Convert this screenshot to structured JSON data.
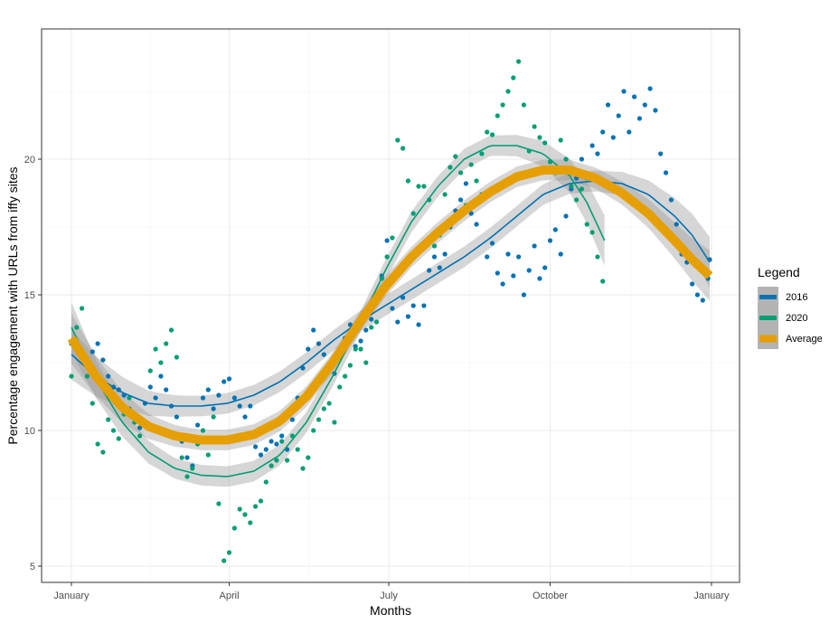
{
  "chart_data": {
    "type": "scatter",
    "title": "",
    "xlabel": "Months",
    "ylabel": "Percentage engagement with URLs from iffy sites",
    "x_ticks": [
      {
        "label": "January",
        "day": 1
      },
      {
        "label": "April",
        "day": 91
      },
      {
        "label": "July",
        "day": 182
      },
      {
        "label": "October",
        "day": 274
      },
      {
        "label": "January",
        "day": 366
      }
    ],
    "y_ticks": [
      5,
      10,
      15,
      20
    ],
    "xlim": [
      -16,
      382
    ],
    "ylim": [
      4.4,
      24.8
    ],
    "grid": true,
    "legend": {
      "title": "Legend",
      "position": "right",
      "entries": [
        {
          "label": "2016",
          "color": "#0072B2"
        },
        {
          "label": "2020",
          "color": "#009E73"
        },
        {
          "label": "Average",
          "color": "#E69F00"
        }
      ]
    },
    "series": [
      {
        "name": "2016",
        "color": "#0072B2",
        "smooth_start_day": 1,
        "smooth_end_day": 365,
        "smooth_line": [
          [
            1,
            12.8
          ],
          [
            15,
            12.0
          ],
          [
            30,
            11.4
          ],
          [
            45,
            11.0
          ],
          [
            60,
            10.9
          ],
          [
            75,
            10.9
          ],
          [
            90,
            11.0
          ],
          [
            105,
            11.3
          ],
          [
            120,
            11.8
          ],
          [
            135,
            12.5
          ],
          [
            150,
            13.3
          ],
          [
            165,
            14.0
          ],
          [
            180,
            14.6
          ],
          [
            195,
            15.2
          ],
          [
            210,
            15.8
          ],
          [
            225,
            16.4
          ],
          [
            240,
            17.1
          ],
          [
            255,
            17.9
          ],
          [
            270,
            18.7
          ],
          [
            285,
            19.1
          ],
          [
            300,
            19.2
          ],
          [
            315,
            19.1
          ],
          [
            330,
            18.7
          ],
          [
            345,
            17.9
          ],
          [
            355,
            17.2
          ],
          [
            365,
            16.2
          ]
        ],
        "points": [
          [
            1,
            13.2
          ],
          [
            4,
            13.0
          ],
          [
            7,
            12.7
          ],
          [
            10,
            12.4
          ],
          [
            13,
            12.9
          ],
          [
            16,
            13.2
          ],
          [
            19,
            12.6
          ],
          [
            22,
            12.0
          ],
          [
            25,
            11.6
          ],
          [
            28,
            11.5
          ],
          [
            31,
            11.3
          ],
          [
            34,
            10.8
          ],
          [
            37,
            10.5
          ],
          [
            40,
            10.1
          ],
          [
            43,
            11.0
          ],
          [
            46,
            11.6
          ],
          [
            49,
            11.2
          ],
          [
            52,
            12.0
          ],
          [
            55,
            11.5
          ],
          [
            58,
            10.9
          ],
          [
            61,
            10.5
          ],
          [
            64,
            9.6
          ],
          [
            67,
            9.0
          ],
          [
            70,
            8.7
          ],
          [
            73,
            10.2
          ],
          [
            76,
            11.2
          ],
          [
            79,
            11.5
          ],
          [
            82,
            10.8
          ],
          [
            85,
            11.3
          ],
          [
            88,
            11.8
          ],
          [
            91,
            11.9
          ],
          [
            94,
            11.2
          ],
          [
            97,
            10.9
          ],
          [
            100,
            10.5
          ],
          [
            103,
            10.9
          ],
          [
            106,
            9.4
          ],
          [
            109,
            9.1
          ],
          [
            112,
            9.3
          ],
          [
            115,
            9.6
          ],
          [
            118,
            9.5
          ],
          [
            121,
            9.8
          ],
          [
            124,
            9.3
          ],
          [
            127,
            10.4
          ],
          [
            130,
            11.2
          ],
          [
            133,
            12.3
          ],
          [
            136,
            13.0
          ],
          [
            139,
            13.7
          ],
          [
            142,
            13.2
          ],
          [
            145,
            12.8
          ],
          [
            148,
            12.4
          ],
          [
            151,
            12.1
          ],
          [
            154,
            12.7
          ],
          [
            157,
            13.4
          ],
          [
            160,
            13.9
          ],
          [
            163,
            13.1
          ],
          [
            166,
            13.3
          ],
          [
            169,
            13.7
          ],
          [
            172,
            14.1
          ],
          [
            175,
            14.8
          ],
          [
            178,
            15.7
          ],
          [
            181,
            17.0
          ],
          [
            184,
            14.5
          ],
          [
            187,
            14.0
          ],
          [
            190,
            14.9
          ],
          [
            193,
            14.2
          ],
          [
            196,
            14.6
          ],
          [
            199,
            13.9
          ],
          [
            202,
            14.6
          ],
          [
            205,
            15.9
          ],
          [
            208,
            16.4
          ],
          [
            211,
            16.0
          ],
          [
            214,
            16.5
          ],
          [
            217,
            17.5
          ],
          [
            220,
            18.1
          ],
          [
            223,
            18.5
          ],
          [
            226,
            19.1
          ],
          [
            229,
            18.0
          ],
          [
            232,
            17.6
          ],
          [
            235,
            18.7
          ],
          [
            238,
            16.4
          ],
          [
            241,
            16.9
          ],
          [
            244,
            15.8
          ],
          [
            247,
            15.4
          ],
          [
            250,
            16.5
          ],
          [
            253,
            15.7
          ],
          [
            256,
            16.4
          ],
          [
            259,
            15.0
          ],
          [
            262,
            15.9
          ],
          [
            265,
            16.8
          ],
          [
            268,
            15.6
          ],
          [
            271,
            16.0
          ],
          [
            274,
            17.0
          ],
          [
            277,
            17.4
          ],
          [
            280,
            16.5
          ],
          [
            283,
            17.9
          ],
          [
            286,
            18.9
          ],
          [
            289,
            19.3
          ],
          [
            292,
            20.0
          ],
          [
            295,
            19.3
          ],
          [
            298,
            20.5
          ],
          [
            301,
            20.2
          ],
          [
            304,
            21.0
          ],
          [
            307,
            22.0
          ],
          [
            310,
            20.8
          ],
          [
            313,
            21.6
          ],
          [
            316,
            22.5
          ],
          [
            319,
            21.0
          ],
          [
            322,
            22.3
          ],
          [
            325,
            21.5
          ],
          [
            328,
            22.0
          ],
          [
            331,
            22.6
          ],
          [
            334,
            21.8
          ],
          [
            337,
            20.2
          ],
          [
            340,
            19.5
          ],
          [
            343,
            18.5
          ],
          [
            346,
            17.6
          ],
          [
            349,
            16.5
          ],
          [
            352,
            16.2
          ],
          [
            355,
            15.4
          ],
          [
            358,
            15.0
          ],
          [
            361,
            14.8
          ],
          [
            364,
            15.6
          ],
          [
            365,
            16.3
          ]
        ]
      },
      {
        "name": "2020",
        "color": "#009E73",
        "smooth_start_day": 1,
        "smooth_end_day": 305,
        "smooth_line": [
          [
            1,
            13.8
          ],
          [
            15,
            11.9
          ],
          [
            30,
            10.3
          ],
          [
            45,
            9.2
          ],
          [
            60,
            8.6
          ],
          [
            75,
            8.35
          ],
          [
            90,
            8.3
          ],
          [
            105,
            8.5
          ],
          [
            120,
            9.1
          ],
          [
            135,
            10.3
          ],
          [
            150,
            12.0
          ],
          [
            165,
            13.9
          ],
          [
            180,
            15.9
          ],
          [
            195,
            17.7
          ],
          [
            210,
            19.0
          ],
          [
            225,
            20.0
          ],
          [
            240,
            20.5
          ],
          [
            255,
            20.5
          ],
          [
            270,
            20.2
          ],
          [
            285,
            19.4
          ],
          [
            295,
            18.4
          ],
          [
            305,
            17.0
          ]
        ],
        "points": [
          [
            1,
            12.0
          ],
          [
            4,
            13.8
          ],
          [
            7,
            14.5
          ],
          [
            10,
            12.0
          ],
          [
            13,
            11.0
          ],
          [
            16,
            9.5
          ],
          [
            19,
            9.2
          ],
          [
            22,
            10.4
          ],
          [
            25,
            10.0
          ],
          [
            28,
            9.7
          ],
          [
            31,
            10.6
          ],
          [
            34,
            11.2
          ],
          [
            37,
            10.3
          ],
          [
            40,
            9.8
          ],
          [
            43,
            10.3
          ],
          [
            46,
            12.2
          ],
          [
            49,
            13.0
          ],
          [
            52,
            12.5
          ],
          [
            55,
            13.2
          ],
          [
            58,
            13.7
          ],
          [
            61,
            12.7
          ],
          [
            64,
            9.0
          ],
          [
            67,
            8.3
          ],
          [
            70,
            8.6
          ],
          [
            73,
            9.5
          ],
          [
            76,
            10.0
          ],
          [
            79,
            9.1
          ],
          [
            82,
            10.5
          ],
          [
            85,
            7.3
          ],
          [
            88,
            5.2
          ],
          [
            91,
            5.5
          ],
          [
            94,
            6.4
          ],
          [
            97,
            7.1
          ],
          [
            100,
            6.9
          ],
          [
            103,
            6.6
          ],
          [
            106,
            7.2
          ],
          [
            109,
            7.4
          ],
          [
            112,
            8.1
          ],
          [
            115,
            8.7
          ],
          [
            118,
            8.9
          ],
          [
            121,
            9.6
          ],
          [
            124,
            8.9
          ],
          [
            127,
            9.8
          ],
          [
            130,
            9.3
          ],
          [
            133,
            8.6
          ],
          [
            136,
            9.0
          ],
          [
            139,
            10.0
          ],
          [
            142,
            10.4
          ],
          [
            145,
            10.8
          ],
          [
            148,
            11.0
          ],
          [
            151,
            10.3
          ],
          [
            154,
            11.6
          ],
          [
            157,
            12.0
          ],
          [
            160,
            12.4
          ],
          [
            163,
            13.0
          ],
          [
            166,
            13.0
          ],
          [
            169,
            12.5
          ],
          [
            172,
            13.8
          ],
          [
            175,
            14.0
          ],
          [
            178,
            15.6
          ],
          [
            181,
            16.4
          ],
          [
            184,
            17.1
          ],
          [
            187,
            20.7
          ],
          [
            190,
            20.4
          ],
          [
            193,
            19.2
          ],
          [
            196,
            18.0
          ],
          [
            199,
            19.0
          ],
          [
            202,
            19.0
          ],
          [
            205,
            18.5
          ],
          [
            208,
            16.8
          ],
          [
            211,
            17.2
          ],
          [
            214,
            18.7
          ],
          [
            217,
            19.7
          ],
          [
            220,
            20.1
          ],
          [
            223,
            19.5
          ],
          [
            226,
            18.3
          ],
          [
            229,
            19.8
          ],
          [
            232,
            19.2
          ],
          [
            235,
            20.2
          ],
          [
            238,
            21.0
          ],
          [
            241,
            20.9
          ],
          [
            244,
            21.6
          ],
          [
            247,
            22.0
          ],
          [
            250,
            22.5
          ],
          [
            253,
            23.0
          ],
          [
            256,
            23.6
          ],
          [
            259,
            22.0
          ],
          [
            262,
            20.3
          ],
          [
            265,
            21.2
          ],
          [
            268,
            20.8
          ],
          [
            271,
            20.6
          ],
          [
            274,
            19.9
          ],
          [
            277,
            19.5
          ],
          [
            280,
            20.7
          ],
          [
            283,
            20.0
          ],
          [
            286,
            19.0
          ],
          [
            289,
            18.5
          ],
          [
            292,
            18.9
          ],
          [
            295,
            17.6
          ],
          [
            298,
            17.3
          ],
          [
            301,
            16.4
          ],
          [
            304,
            15.5
          ]
        ]
      },
      {
        "name": "Average",
        "color": "#E69F00",
        "smooth_start_day": 1,
        "smooth_end_day": 365,
        "smooth_line": [
          [
            1,
            13.4
          ],
          [
            15,
            12.0
          ],
          [
            30,
            10.85
          ],
          [
            45,
            10.15
          ],
          [
            60,
            9.8
          ],
          [
            75,
            9.65
          ],
          [
            90,
            9.65
          ],
          [
            105,
            9.85
          ],
          [
            120,
            10.35
          ],
          [
            135,
            11.25
          ],
          [
            150,
            12.5
          ],
          [
            165,
            13.95
          ],
          [
            180,
            15.3
          ],
          [
            195,
            16.4
          ],
          [
            210,
            17.3
          ],
          [
            225,
            18.1
          ],
          [
            240,
            18.8
          ],
          [
            255,
            19.35
          ],
          [
            270,
            19.6
          ],
          [
            285,
            19.6
          ],
          [
            300,
            19.3
          ],
          [
            315,
            18.75
          ],
          [
            330,
            18.0
          ],
          [
            345,
            17.0
          ],
          [
            355,
            16.3
          ],
          [
            365,
            15.7
          ]
        ]
      }
    ]
  }
}
